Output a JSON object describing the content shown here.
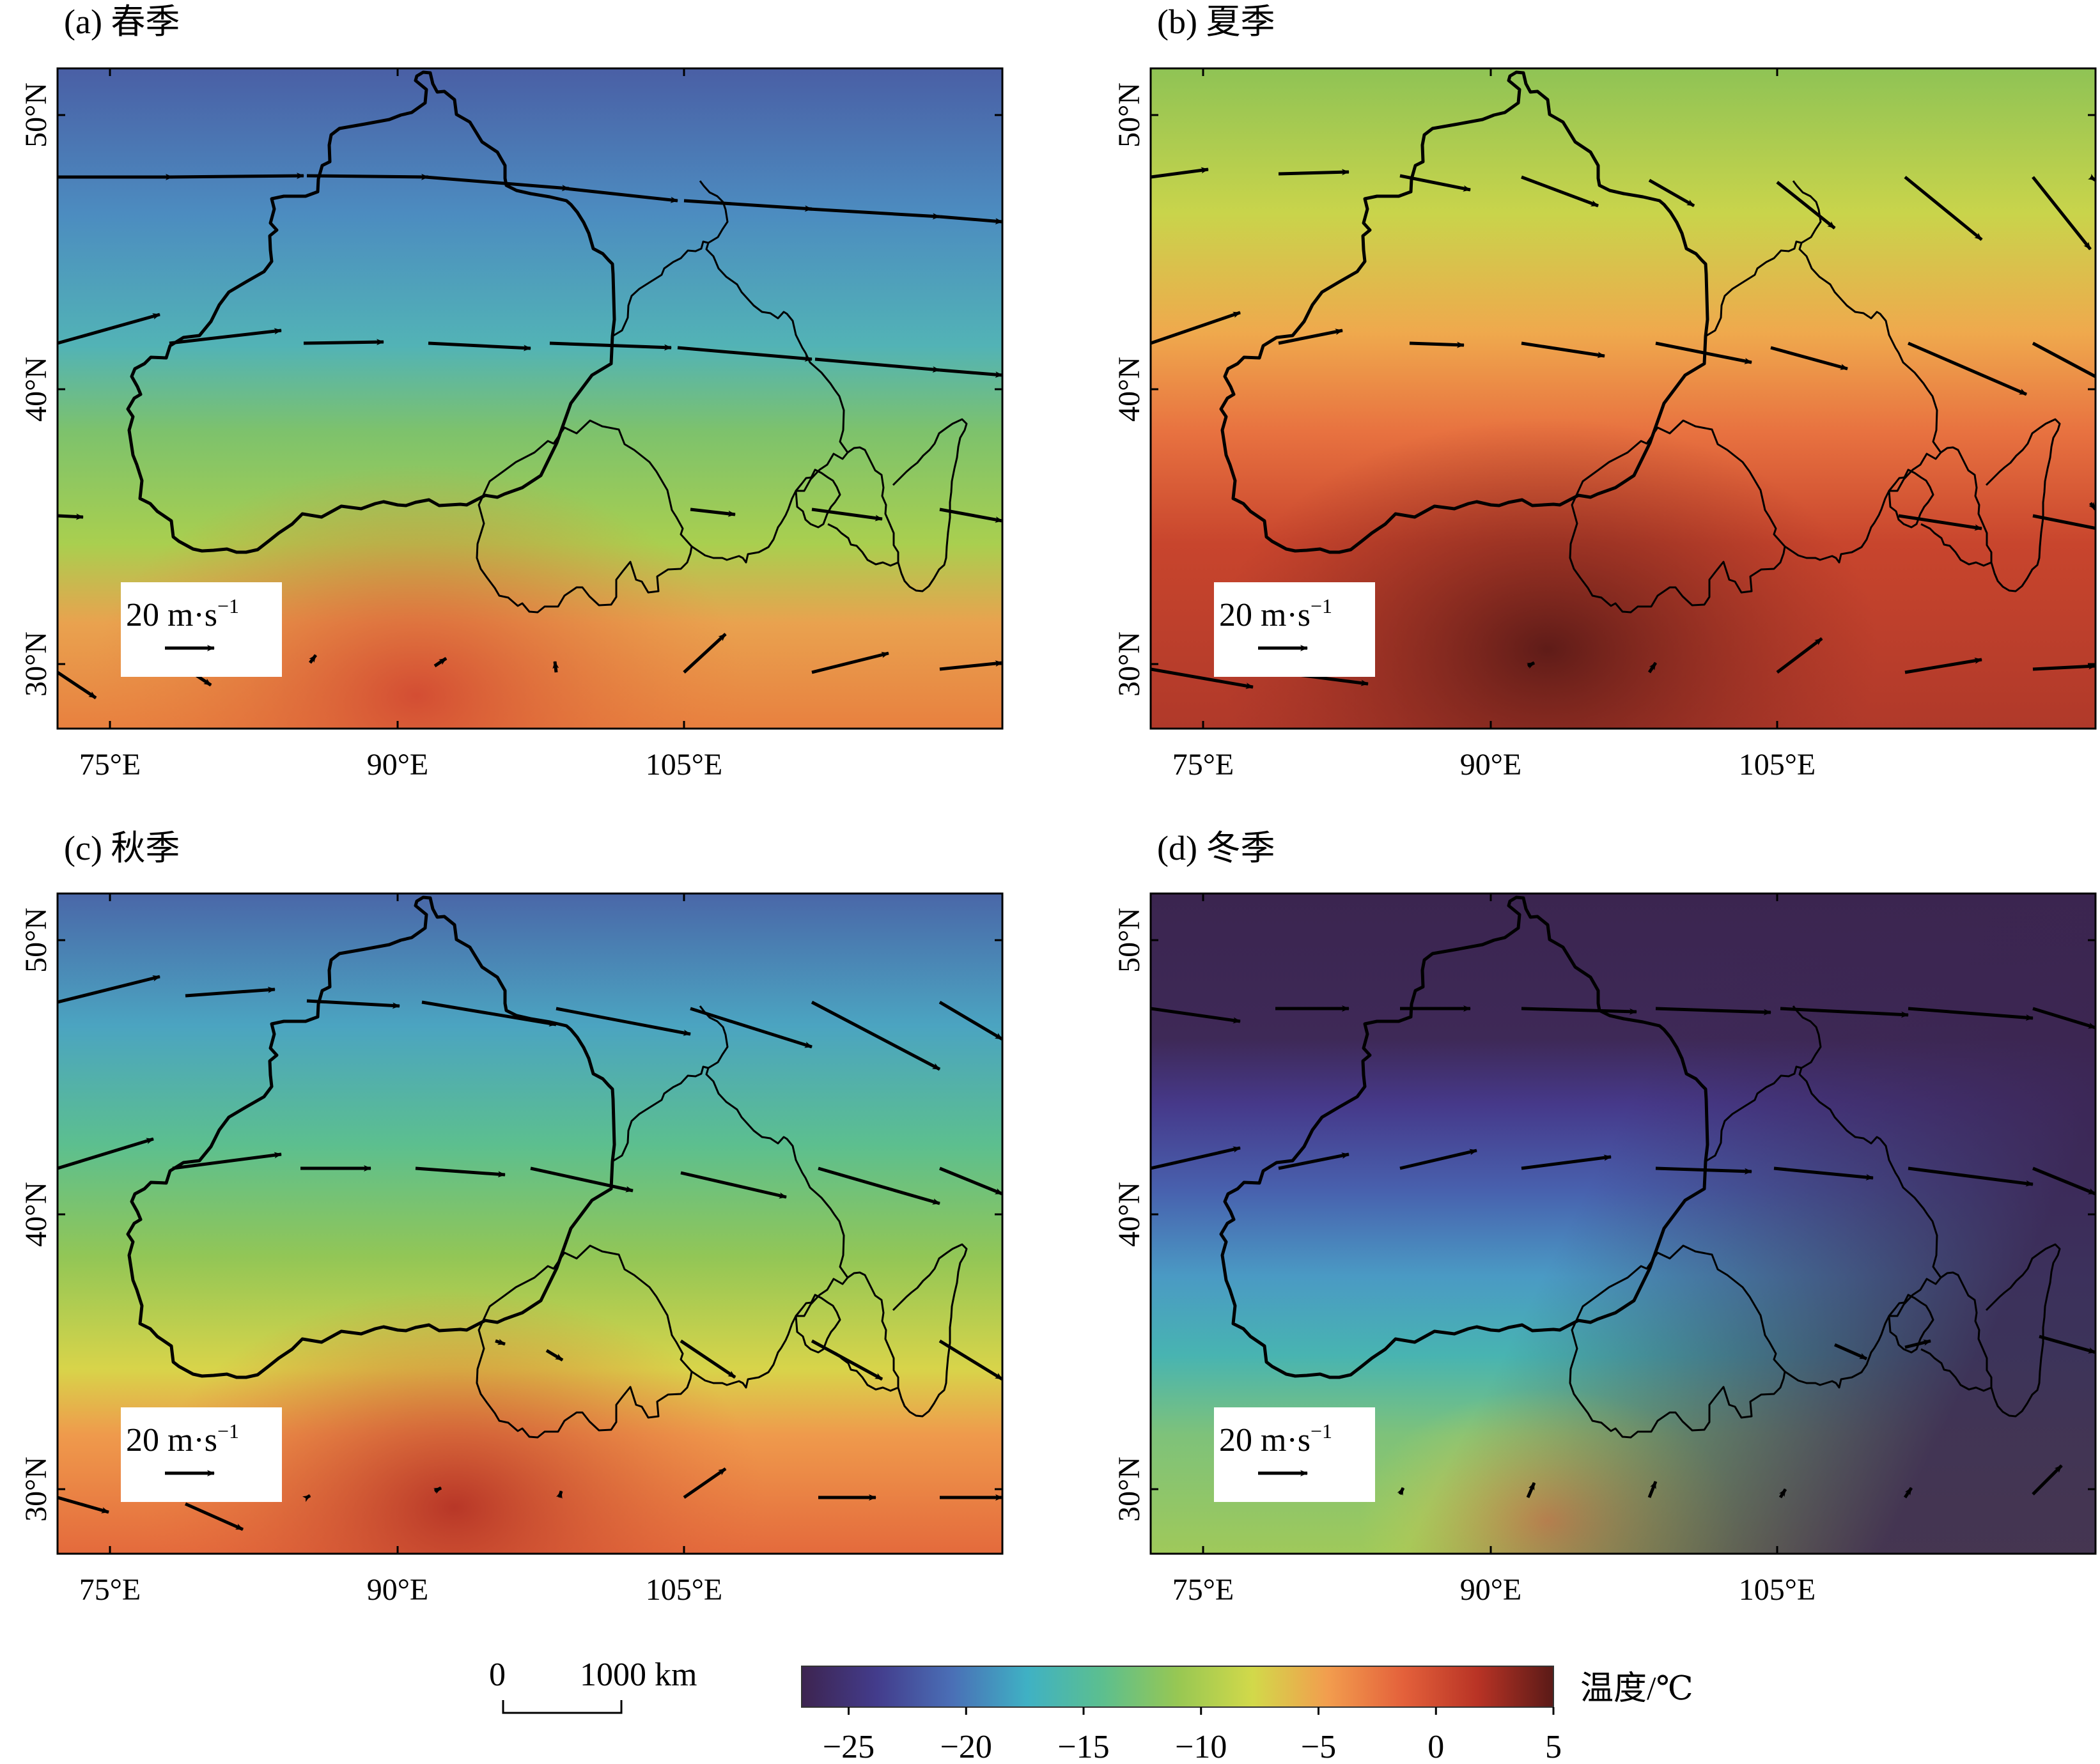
{
  "panels": [
    {
      "title": "(a) 春季",
      "season": "spring"
    },
    {
      "title": "(b) 夏季",
      "season": "summer"
    },
    {
      "title": "(c) 秋季",
      "season": "autumn"
    },
    {
      "title": "(d) 冬季",
      "season": "winter"
    }
  ],
  "axes": {
    "lon_ticks": [
      "75°E",
      "90°E",
      "105°E"
    ],
    "lat_ticks": [
      "30°N",
      "40°N",
      "50°N"
    ],
    "lon_range": [
      70,
      117
    ],
    "lat_range": [
      28,
      52
    ]
  },
  "wind_reference": {
    "value": "20",
    "unit": "m·s",
    "exponent": "−1"
  },
  "scale_bar": {
    "start": "0",
    "end": "1000 km"
  },
  "colorbar": {
    "label": "温度/℃",
    "ticks": [
      "−25",
      "−20",
      "−15",
      "−10",
      "−5",
      "0",
      "5"
    ],
    "range": [
      -27,
      5
    ],
    "colors": [
      "#3d2450",
      "#433c8c",
      "#4a6fb6",
      "#3fb1c4",
      "#5cbf8f",
      "#97c753",
      "#d2d94a",
      "#f29d4e",
      "#e4613b",
      "#b83325",
      "#5a1a17"
    ]
  }
}
